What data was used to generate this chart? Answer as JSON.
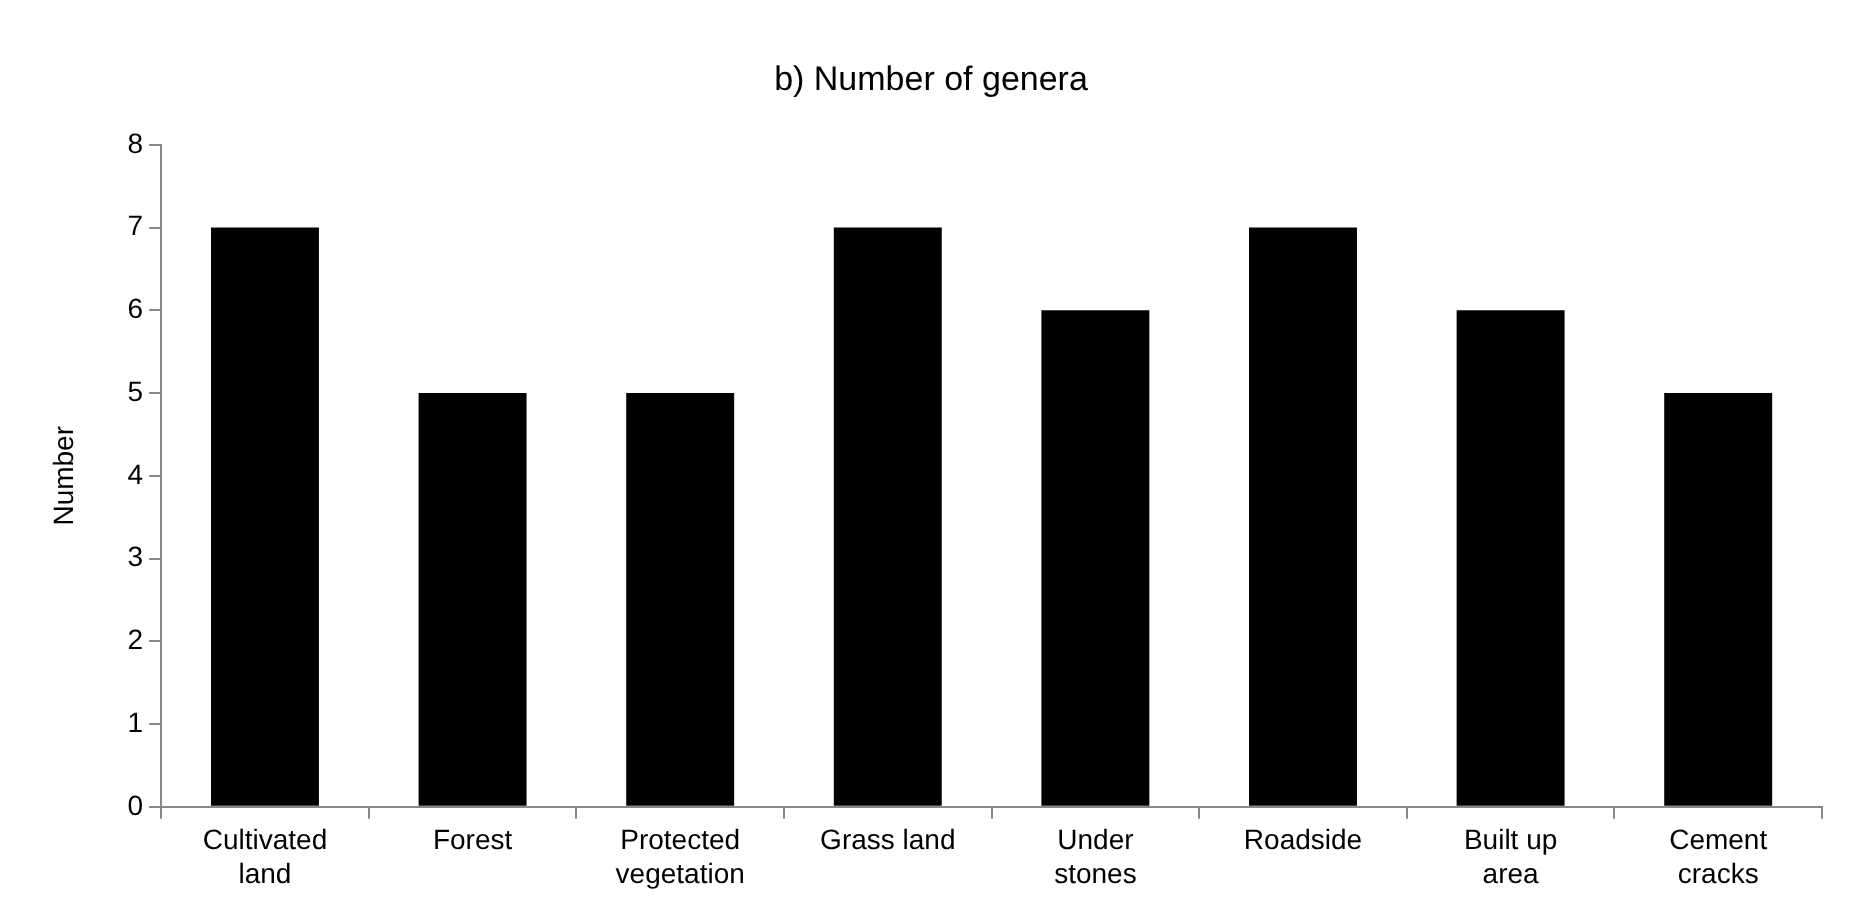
{
  "chart_data": {
    "type": "bar",
    "title": "b) Number of genera",
    "ylabel": "Number",
    "categories": [
      "Cultivated land",
      "Forest",
      "Protected vegetation",
      "Grass land",
      "Under stones",
      "Roadside",
      "Built up area",
      "Cement cracks"
    ],
    "values": [
      7,
      5,
      5,
      7,
      6,
      7,
      6,
      5
    ],
    "color": "#000000",
    "ylim": [
      0,
      8
    ],
    "yticks": [
      0,
      1,
      2,
      3,
      4,
      5,
      6,
      7,
      8
    ],
    "grid": false,
    "legend": false
  }
}
